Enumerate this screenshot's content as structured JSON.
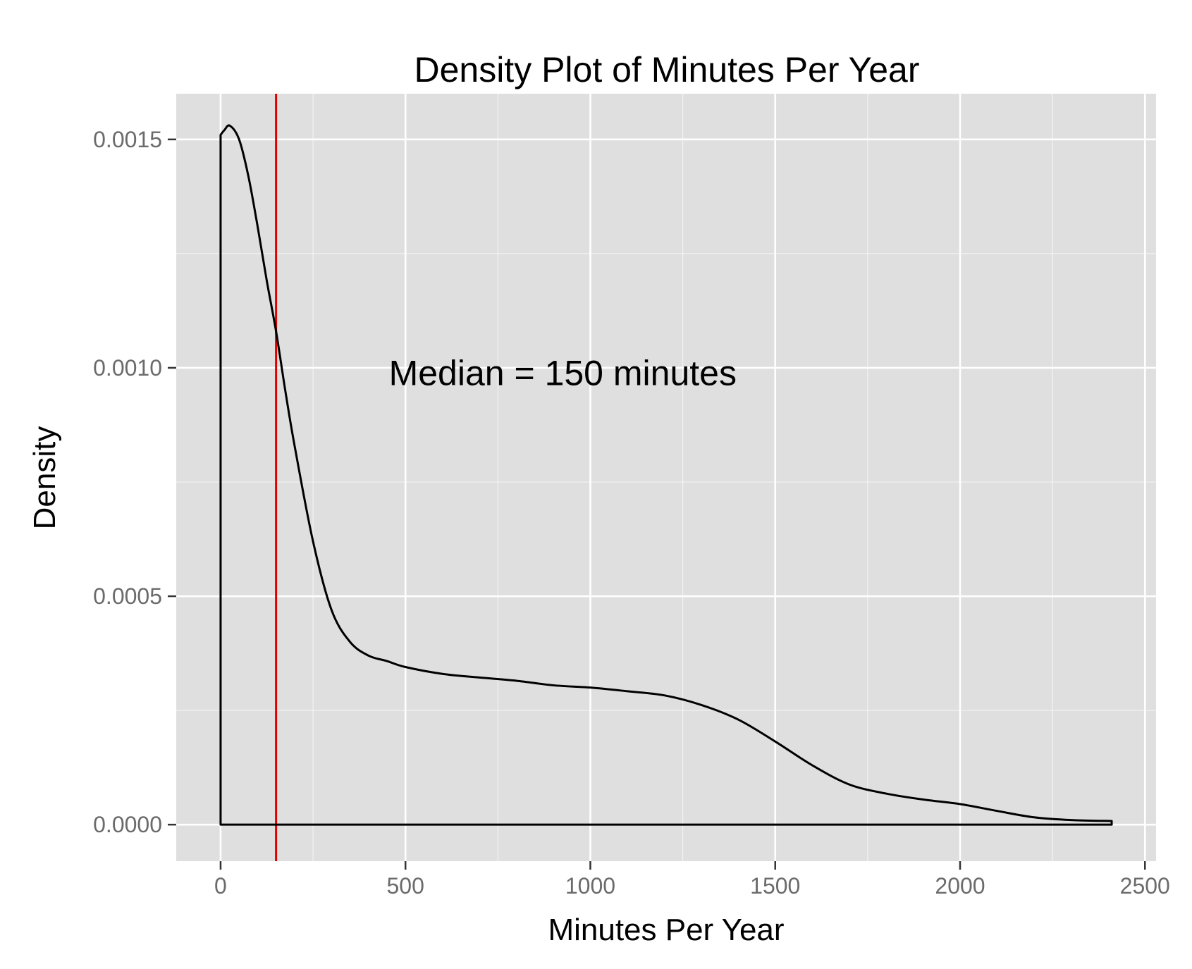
{
  "chart_data": {
    "type": "line",
    "title": "Density Plot of Minutes Per Year",
    "xlabel": "Minutes Per Year",
    "ylabel": "Density",
    "xlim": [
      -120,
      2530
    ],
    "ylim": [
      -8e-05,
      0.0016
    ],
    "x_ticks": [
      0,
      500,
      1000,
      1500,
      2000,
      2500
    ],
    "x_tick_labels": [
      "0",
      "500",
      "1000",
      "1500",
      "2000",
      "2500"
    ],
    "y_ticks": [
      0,
      0.0005,
      0.001,
      0.0015
    ],
    "y_tick_labels": [
      "0.0000",
      "0.0005",
      "0.0010",
      "0.0015"
    ],
    "grid": true,
    "panel_background": "#dfdfdf",
    "grid_color": "#ffffff",
    "series": [
      {
        "color": "#000000",
        "x": [
          0,
          10,
          25,
          50,
          75,
          100,
          125,
          150,
          175,
          200,
          250,
          300,
          350,
          400,
          450,
          500,
          600,
          700,
          800,
          900,
          1000,
          1100,
          1200,
          1300,
          1400,
          1500,
          1600,
          1700,
          1800,
          1900,
          2000,
          2100,
          2200,
          2300,
          2410
        ],
        "y": [
          0.00151,
          0.00152,
          0.00153,
          0.0015,
          0.00142,
          0.00131,
          0.00119,
          0.00108,
          0.00095,
          0.00083,
          0.00062,
          0.00047,
          0.0004,
          0.00037,
          0.000358,
          0.000345,
          0.00033,
          0.000322,
          0.000315,
          0.000305,
          0.0003,
          0.000292,
          0.000283,
          0.000262,
          0.00023,
          0.000182,
          0.00013,
          8.8e-05,
          6.8e-05,
          5.5e-05,
          4.5e-05,
          3e-05,
          1.6e-05,
          1e-05,
          8e-06
        ]
      }
    ],
    "reference_line": {
      "x": 150,
      "color": "#e00000"
    },
    "annotation": {
      "text": "Median = 150 minutes",
      "x": 455,
      "y": 0.00099
    }
  }
}
